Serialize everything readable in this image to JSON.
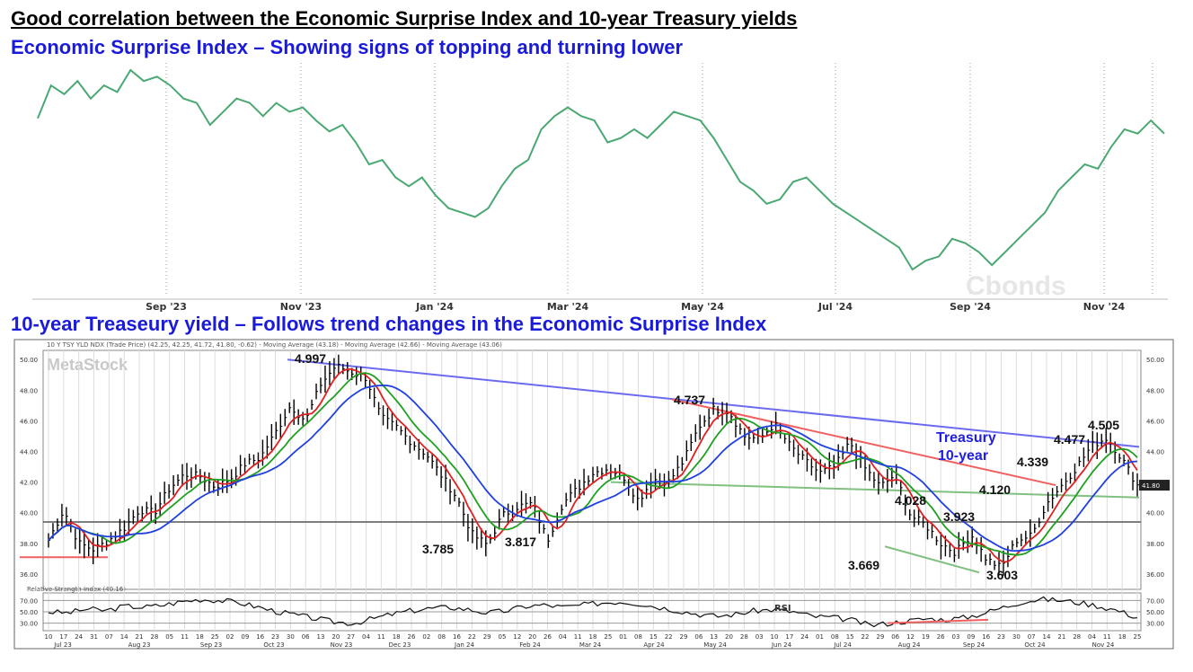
{
  "titles": {
    "main": "Good correlation between the Economic Surprise Index and 10-year Treasury yields",
    "top": "Economic Surprise Index – Showing signs of topping and turning lower",
    "bottom": "10-year Treaseury yield – Follows trend changes in the Economic Surprise Index"
  },
  "watermarks": {
    "top": "Cbonds",
    "bottom": "MetaStock"
  },
  "colors": {
    "esi_line": "#4aa872",
    "price_bars": "#000000",
    "ma_short": "#e02020",
    "ma_mid": "#20a020",
    "ma_long": "#2040e0",
    "trend_blue": "#6b6bf0",
    "trend_red": "#f06060",
    "trend_green": "#80c080",
    "title_blue": "#1a1adb"
  },
  "chart_data": [
    {
      "type": "line",
      "name": "Economic Surprise Index",
      "x_tick_labels": [
        "Sep '23",
        "Nov '23",
        "Jan '24",
        "Mar '24",
        "May '24",
        "Jul '24",
        "Sep '24",
        "Nov '24"
      ],
      "grid": "vertical dotted",
      "values": [
        63,
        78,
        74,
        80,
        72,
        78,
        75,
        85,
        80,
        82,
        78,
        72,
        70,
        60,
        66,
        72,
        70,
        64,
        70,
        66,
        68,
        62,
        57,
        60,
        52,
        42,
        44,
        36,
        32,
        36,
        28,
        22,
        20,
        18,
        22,
        32,
        40,
        44,
        58,
        64,
        68,
        64,
        62,
        52,
        54,
        58,
        54,
        60,
        66,
        64,
        62,
        54,
        44,
        34,
        30,
        24,
        26,
        34,
        36,
        30,
        24,
        20,
        16,
        12,
        8,
        4,
        -6,
        -2,
        0,
        8,
        6,
        2,
        -4,
        2,
        8,
        14,
        20,
        30,
        36,
        42,
        40,
        50,
        58,
        56,
        62,
        56
      ]
    },
    {
      "type": "line",
      "name": "10 Y TSY YLD NDX",
      "header": "10 Y TSY YLD NDX (Trade Price) (42.25, 42.25, 41.72, 41.80, -0.62) - Moving Average (43.18) - Moving Average (42.66) - Moving Average (43.06)",
      "ylim": [
        35.0,
        50.6
      ],
      "y_ticks": [
        "50.00",
        "48.00",
        "46.00",
        "44.00",
        "42.00",
        "40.00",
        "38.00",
        "36.00"
      ],
      "y_ticks_right": [
        "50.00",
        "48.00",
        "46.00",
        "44.00",
        "42.00",
        "40.00",
        "38.00",
        "36.00"
      ],
      "last_value_label": "41.80",
      "x_day_labels": [
        "10",
        "17",
        "24",
        "31",
        "07",
        "14",
        "21",
        "28",
        "05",
        "11",
        "18",
        "25",
        "02",
        "09",
        "16",
        "23",
        "30",
        "06",
        "13",
        "20",
        "27",
        "04",
        "11",
        "18",
        "26",
        "02",
        "08",
        "16",
        "22",
        "29",
        "05",
        "12",
        "20",
        "26",
        "04",
        "11",
        "18",
        "25",
        "01",
        "08",
        "15",
        "22",
        "29",
        "06",
        "13",
        "20",
        "28",
        "03",
        "10",
        "17",
        "24",
        "01",
        "08",
        "15",
        "22",
        "29",
        "06",
        "12",
        "19",
        "26",
        "03",
        "09",
        "16",
        "23",
        "30",
        "07",
        "14",
        "21",
        "28",
        "04",
        "11",
        "18",
        "25"
      ],
      "x_month_labels": [
        "Jul 23",
        "Aug 23",
        "Sep 23",
        "Oct 23",
        "Nov 23",
        "Dec 23",
        "Jan 24",
        "Feb 24",
        "Mar 24",
        "Apr 24",
        "May 24",
        "Jun 24",
        "Jul 24",
        "Aug 24",
        "Sep 24",
        "Oct 24",
        "Nov 24"
      ],
      "values": [
        38.2,
        40.2,
        38.0,
        37.6,
        38.2,
        39.0,
        40.2,
        40.0,
        41.6,
        42.5,
        42.4,
        41.7,
        42.2,
        43.2,
        43.6,
        45.2,
        47.0,
        46.0,
        48.4,
        49.6,
        49.2,
        48.8,
        46.2,
        45.6,
        44.6,
        43.8,
        42.4,
        41.0,
        38.6,
        37.9,
        39.8,
        40.4,
        40.6,
        38.2,
        40.6,
        41.6,
        42.6,
        42.9,
        42.4,
        40.8,
        42.2,
        42.0,
        43.4,
        45.6,
        46.8,
        46.6,
        45.0,
        44.8,
        45.8,
        44.4,
        43.4,
        42.6,
        43.0,
        44.6,
        42.9,
        41.7,
        42.5,
        39.8,
        39.2,
        38.0,
        37.4,
        38.6,
        37.0,
        36.4,
        38.2,
        38.5,
        40.6,
        41.8,
        43.0,
        44.4,
        44.9,
        43.5,
        41.8
      ],
      "annotations": [
        {
          "text": "4.997",
          "x": "Oct 23",
          "y": 49.97
        },
        {
          "text": "4.737",
          "x": "Apr 24",
          "y": 47.37
        },
        {
          "text": "3.785",
          "x": "Dec 23",
          "y": 37.85
        },
        {
          "text": "3.817",
          "x": "Jan 24",
          "y": 38.17
        },
        {
          "text": "4.028",
          "x": "Aug 24",
          "y": 40.28
        },
        {
          "text": "3.923",
          "x": "Aug 24",
          "y": 39.23
        },
        {
          "text": "3.669",
          "x": "Aug 24",
          "y": 36.69
        },
        {
          "text": "3.603",
          "x": "Sep 24",
          "y": 36.03
        },
        {
          "text": "4.120",
          "x": "Sep 24",
          "y": 41.2
        },
        {
          "text": "4.339",
          "x": "Oct 24",
          "y": 43.39
        },
        {
          "text": "4.477",
          "x": "Oct 24",
          "y": 44.77
        },
        {
          "text": "4.505",
          "x": "Nov 24",
          "y": 45.05
        }
      ],
      "callout": [
        "Treasury",
        "10-year"
      ]
    },
    {
      "type": "line",
      "name": "RSI",
      "header": "Relative Strength Index (40.16)",
      "label": "RSI",
      "ylim": [
        20,
        80
      ],
      "y_ticks": [
        "70.00",
        "50.00",
        "30.00"
      ],
      "values": [
        50,
        48,
        55,
        52,
        60,
        58,
        62,
        68,
        72,
        70,
        66,
        58,
        50,
        44,
        38,
        32,
        30,
        38,
        46,
        52,
        56,
        58,
        54,
        48,
        52,
        60,
        62,
        58,
        62,
        66,
        68,
        64,
        58,
        52,
        46,
        42,
        46,
        52,
        54,
        50,
        42,
        40,
        36,
        26,
        30,
        34,
        38,
        36,
        40,
        48,
        58,
        68,
        72,
        70,
        66,
        60,
        52,
        40
      ]
    }
  ]
}
